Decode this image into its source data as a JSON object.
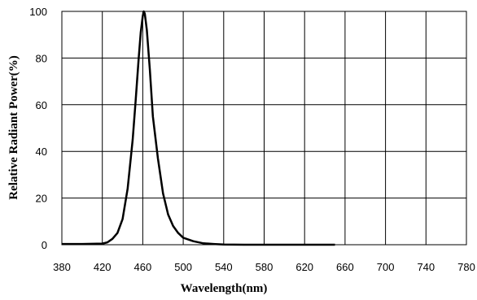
{
  "chart_data": {
    "type": "line",
    "xlabel": "Wavelength(nm)",
    "ylabel": "Relative Radiant Power(%)",
    "xlim": [
      380,
      780
    ],
    "ylim": [
      0,
      100
    ],
    "x_ticks": [
      "380",
      "420",
      "460",
      "500",
      "540",
      "580",
      "620",
      "660",
      "700",
      "740",
      "780"
    ],
    "y_ticks": [
      "0",
      "20",
      "40",
      "60",
      "80",
      "100"
    ],
    "grid": true,
    "series": [
      {
        "color": "#000000",
        "points": [
          [
            380,
            0.3
          ],
          [
            400,
            0.3
          ],
          [
            420,
            0.5
          ],
          [
            425,
            1.0
          ],
          [
            430,
            2.5
          ],
          [
            435,
            5.0
          ],
          [
            440,
            11.0
          ],
          [
            445,
            24.0
          ],
          [
            450,
            45.0
          ],
          [
            453,
            62.0
          ],
          [
            456,
            80.0
          ],
          [
            458,
            91.0
          ],
          [
            460,
            98.0
          ],
          [
            461,
            100.0
          ],
          [
            462,
            99.0
          ],
          [
            464,
            92.0
          ],
          [
            467,
            75.0
          ],
          [
            470,
            55.0
          ],
          [
            475,
            37.0
          ],
          [
            480,
            22.0
          ],
          [
            485,
            13.0
          ],
          [
            490,
            8.0
          ],
          [
            495,
            5.0
          ],
          [
            500,
            3.0
          ],
          [
            510,
            1.5
          ],
          [
            520,
            0.6
          ],
          [
            530,
            0.3
          ],
          [
            540,
            0.1
          ],
          [
            560,
            0.0
          ],
          [
            600,
            0.0
          ],
          [
            650,
            0.0
          ]
        ]
      }
    ]
  }
}
